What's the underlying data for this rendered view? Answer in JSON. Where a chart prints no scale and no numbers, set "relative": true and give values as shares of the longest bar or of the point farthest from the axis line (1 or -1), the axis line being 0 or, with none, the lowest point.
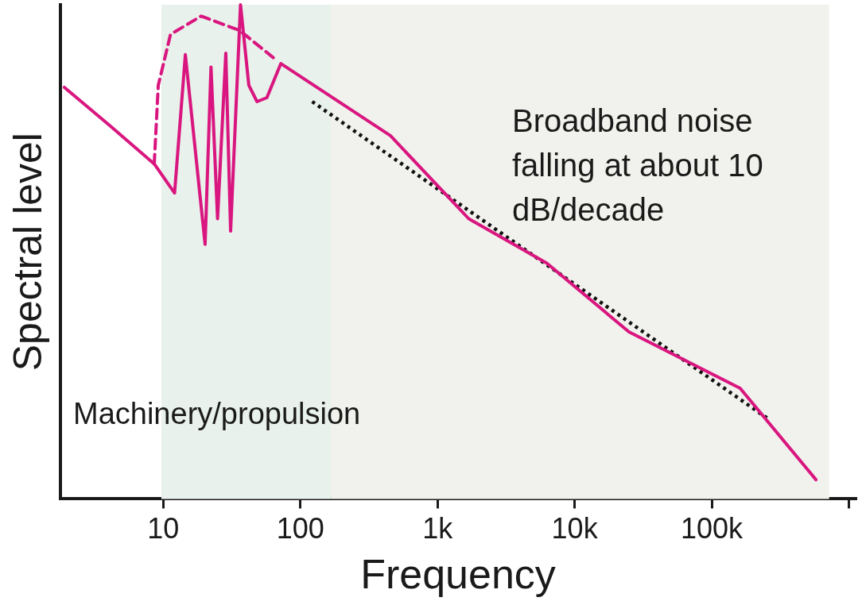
{
  "chart_data": {
    "type": "line",
    "xlabel": "Frequency",
    "ylabel": "Spectral level",
    "relative": true,
    "log": "x",
    "grid": false,
    "legend": false,
    "marker": "none",
    "xlim": [
      1.78,
      1120000
    ],
    "xticks": [
      {
        "value": 10,
        "label": "10"
      },
      {
        "value": 100,
        "label": "100"
      },
      {
        "value": 1000,
        "label": "1k"
      },
      {
        "value": 10000,
        "label": "10k"
      },
      {
        "value": 100000,
        "label": "100k"
      },
      {
        "value": 1000000,
        "label": null
      }
    ],
    "bands": [
      {
        "axis": "x",
        "from": 9.7,
        "to": 167,
        "color": "#e9f1ec"
      },
      {
        "axis": "x",
        "from": 167,
        "to": 718000,
        "color": "#f1f2ed"
      }
    ],
    "annotations": [
      "Machinery/propulsion",
      "Broadband noise falling at about 10 dB/decade"
    ],
    "series": [
      {
        "color": "#d9167f",
        "line_style": "solid",
        "x": [
          1.9,
          4.1,
          8.6,
          12.1,
          14.5,
          20.2,
          22.3,
          24.9,
          28.6,
          31.0,
          36.6,
          42.1,
          48.3,
          57.0,
          72.1,
          454,
          1690,
          6270,
          24900,
          161000,
          575000
        ],
        "values": [
          0.833,
          0.755,
          0.678,
          0.619,
          0.899,
          0.515,
          0.874,
          0.567,
          0.902,
          0.542,
          1,
          0.837,
          0.804,
          0.812,
          0.881,
          0.735,
          0.567,
          0.477,
          0.338,
          0.224,
          0.039
        ]
      },
      {
        "color": "#d9167f",
        "line_style": "dashed",
        "x": [
          8.6,
          9.2,
          11.3,
          18.9,
          36.1,
          68.2
        ],
        "values": [
          0.678,
          0.837,
          0.94,
          0.977,
          0.948,
          0.886
        ]
      },
      {
        "color": "#111111",
        "line_style": "dotted",
        "x": [
          122,
          255000
        ],
        "values": [
          0.804,
          0.163
        ]
      }
    ]
  }
}
